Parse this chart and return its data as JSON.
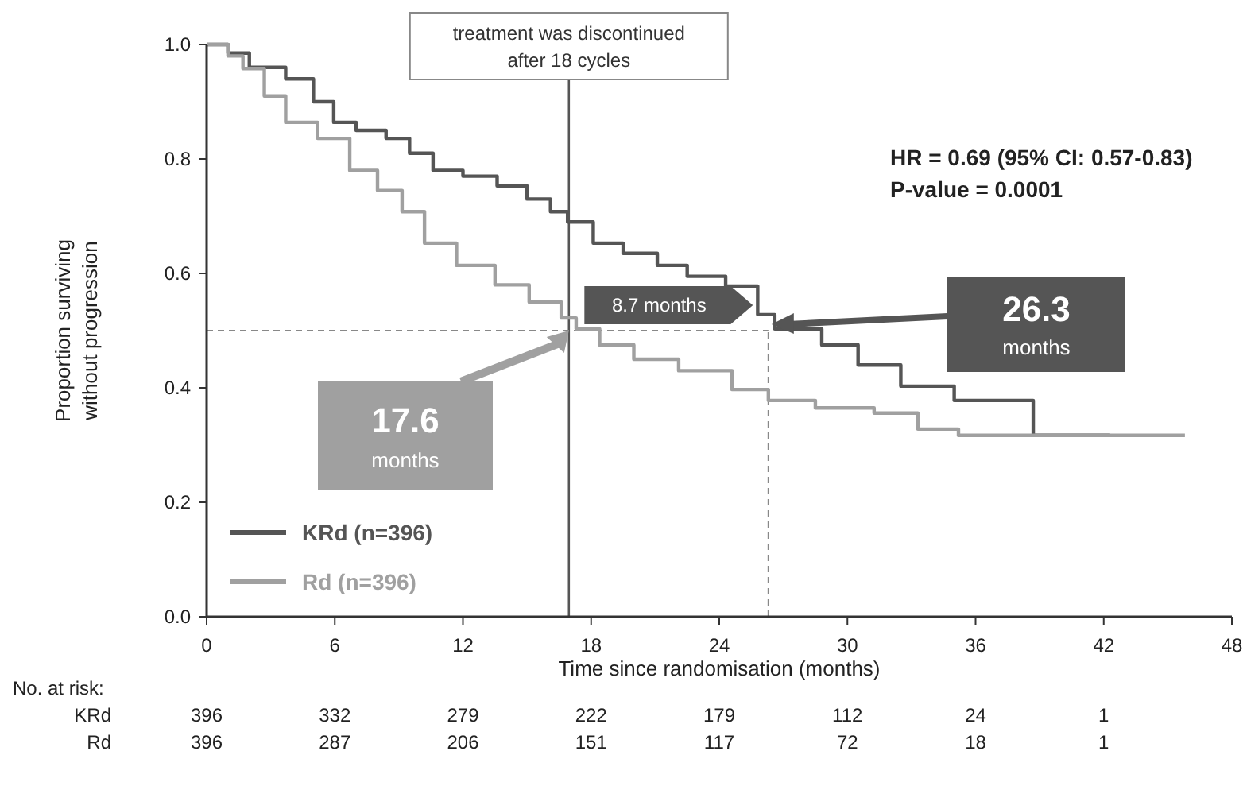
{
  "chart_data": {
    "type": "step",
    "xlabel": "Time since randomisation (months)",
    "ylabel": "Proportion surviving without progression",
    "xlim": [
      0,
      48
    ],
    "xticks": [
      0,
      6,
      12,
      18,
      24,
      30,
      36,
      42,
      48
    ],
    "ylim": [
      0,
      1
    ],
    "yticks": [
      {
        "value": 0,
        "label": "0.0"
      },
      {
        "value": 0.2,
        "label": "0.2"
      },
      {
        "value": 0.4,
        "label": "0.4"
      },
      {
        "value": 0.6,
        "label": "0.6"
      },
      {
        "value": 0.8,
        "label": "0.8"
      },
      {
        "value": 1,
        "label": "1.0"
      }
    ],
    "grid": false,
    "legend": "bottom left",
    "marker": "none",
    "series": [
      {
        "name": "KRd (n=396)",
        "color": "#555555",
        "x": [
          0,
          1,
          2,
          3.7,
          5,
          5.95,
          7,
          8.4,
          9.5,
          10.6,
          12,
          13.6,
          15,
          16.1,
          16.9,
          18.1,
          19.5,
          21.1,
          22.5,
          24.3,
          25.8,
          26.6,
          28.8,
          30.5,
          32.5,
          35,
          38.7,
          38.7,
          42.3
        ],
        "values": [
          1,
          0.985,
          0.96,
          0.94,
          0.9,
          0.864,
          0.85,
          0.836,
          0.81,
          0.78,
          0.77,
          0.753,
          0.73,
          0.708,
          0.69,
          0.653,
          0.635,
          0.614,
          0.595,
          0.578,
          0.528,
          0.503,
          0.475,
          0.44,
          0.403,
          0.378,
          0.375,
          0.317,
          0.317
        ]
      },
      {
        "name": "Rd (n=396)",
        "color": "#a0a0a0",
        "x": [
          0,
          1,
          1.7,
          2.7,
          3.7,
          5.2,
          6.7,
          8,
          9.15,
          10.2,
          11.7,
          13.5,
          15.1,
          16.6,
          17.3,
          18.4,
          20,
          22.1,
          24.6,
          26.3,
          28.5,
          31.25,
          33.3,
          35.2,
          45.8
        ],
        "values": [
          1,
          0.98,
          0.958,
          0.91,
          0.864,
          0.836,
          0.78,
          0.745,
          0.708,
          0.653,
          0.614,
          0.58,
          0.55,
          0.522,
          0.503,
          0.475,
          0.45,
          0.43,
          0.397,
          0.378,
          0.365,
          0.356,
          0.328,
          0.317,
          0.317
        ]
      }
    ],
    "ref_lines": [
      {
        "axis": "x",
        "value": 16.96,
        "label": "treatment was discontinued after 18 cycles",
        "color": "#555555",
        "line_style": "solid"
      },
      {
        "axis": "x",
        "value": 26.3,
        "color": "#888888",
        "line_style": "dashed"
      },
      {
        "axis": "y",
        "value": 0.5,
        "color": "#888888",
        "line_style": "dashed"
      }
    ],
    "annotations": [
      "HR = 0.69 (95% CI: 0.57-0.83)",
      "P-value = 0.0001",
      "17.6 months",
      "26.3 months",
      "8.7 months",
      "No. at risk:",
      "KRd 396 332 279 222 179 112 24 1",
      "Rd 396 287 206 151 117 72 18 1"
    ]
  }
}
